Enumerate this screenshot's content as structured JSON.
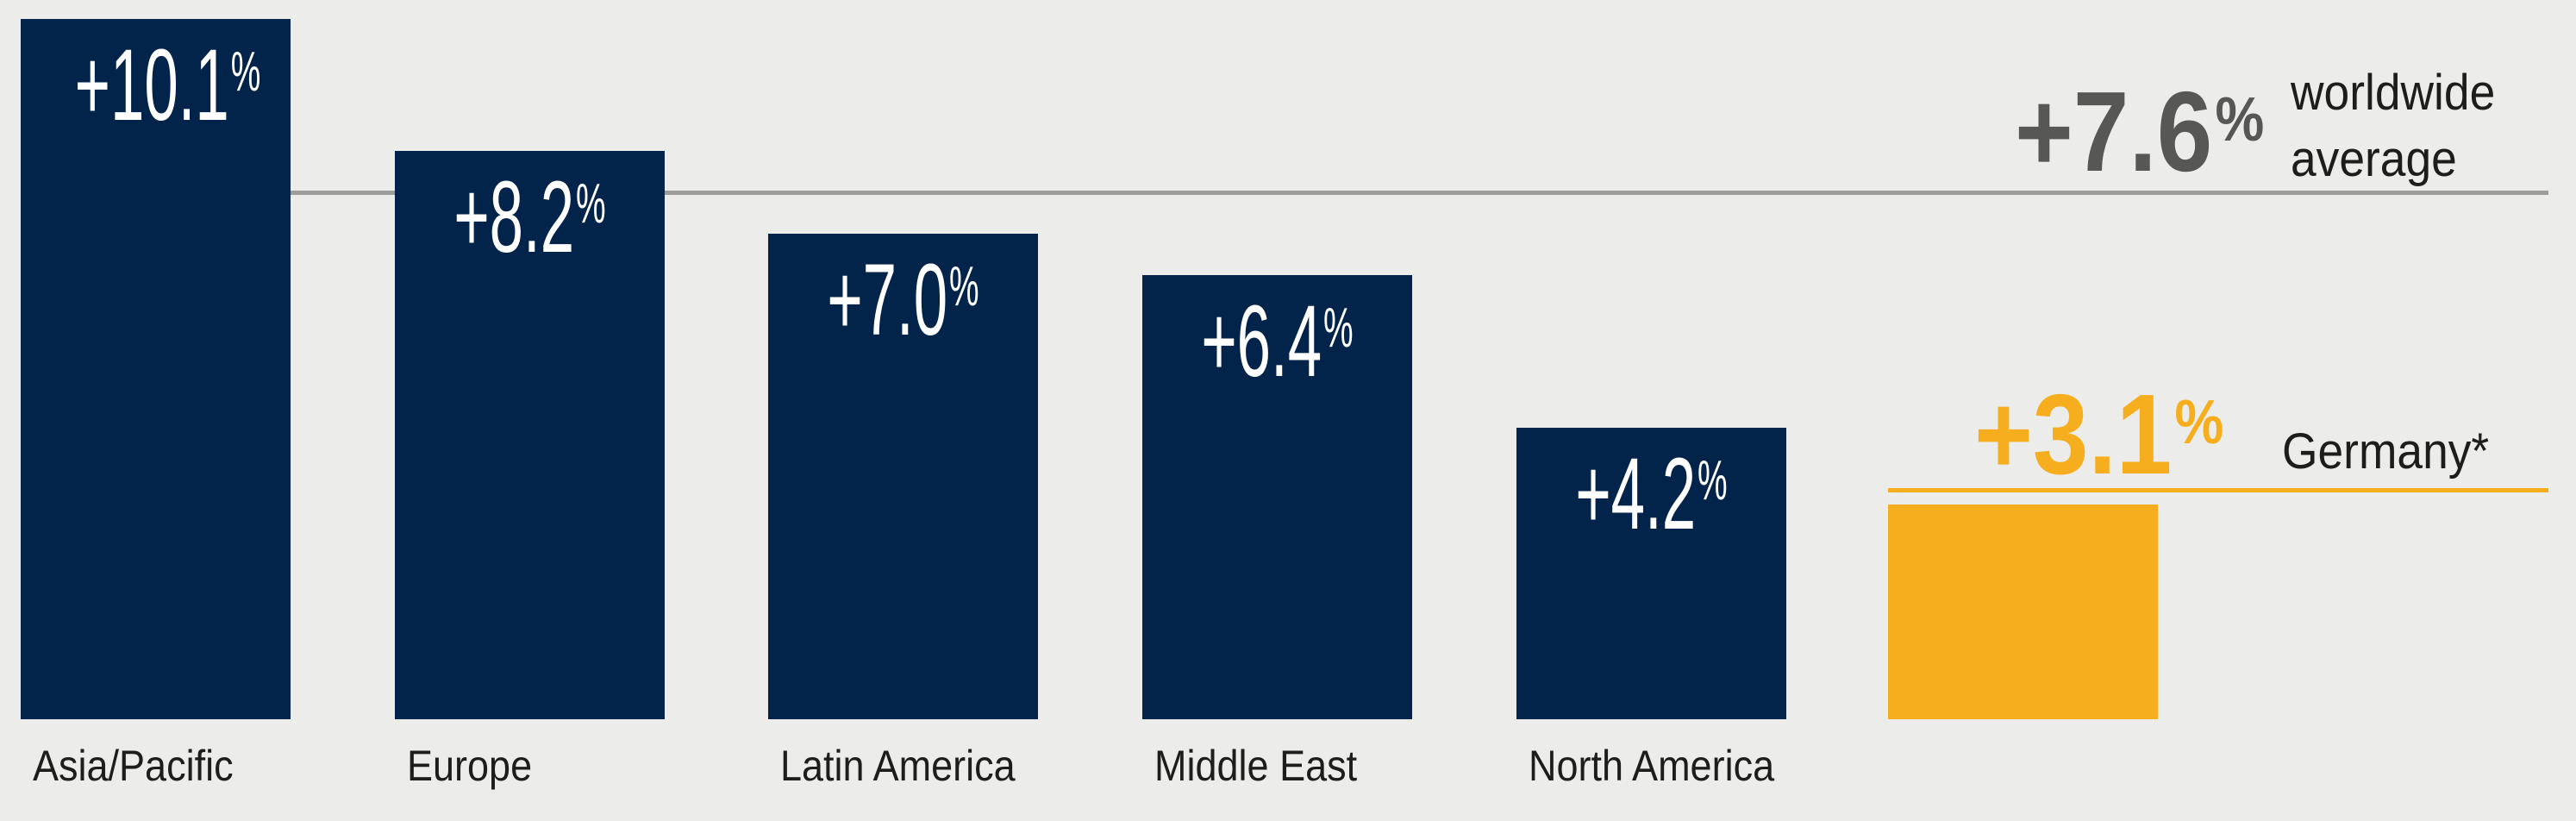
{
  "chart_data": {
    "type": "bar",
    "title": "",
    "categories": [
      "Asia/Pacific",
      "Europe",
      "Latin America",
      "Middle East",
      "North America",
      "Germany*"
    ],
    "values": [
      10.1,
      8.2,
      7.0,
      6.4,
      4.2,
      3.1
    ],
    "value_labels": [
      "+10.1",
      "+8.2",
      "+7.0",
      "+6.4",
      "+4.2",
      "+3.1"
    ],
    "unit": "%",
    "worldwide_average": 7.6,
    "ylim": [
      0,
      10.5
    ],
    "grid": false,
    "legend": false,
    "notes": "Germany value shown as separate yellow annotation with asterisk; worldwide average drawn as horizontal reference line"
  },
  "colors": {
    "background": "#ececea",
    "bar": "#02234a",
    "highlight": "#f6ae1e",
    "bar_value_text": "#ffffff",
    "category_text": "#1d1d1b",
    "average_number": "#575756",
    "average_line": "#9c9c9b",
    "annotation_text": "#1d1d1b"
  },
  "bars": [
    {
      "value_label": "+10.1",
      "pct": "%",
      "category": "Asia/Pacific",
      "color": "#02234a"
    },
    {
      "value_label": "+8.2",
      "pct": "%",
      "category": "Europe",
      "color": "#02234a"
    },
    {
      "value_label": "+7.0",
      "pct": "%",
      "category": "Latin America",
      "color": "#02234a"
    },
    {
      "value_label": "+6.4",
      "pct": "%",
      "category": "Middle East",
      "color": "#02234a"
    },
    {
      "value_label": "+4.2",
      "pct": "%",
      "category": "North America",
      "color": "#02234a"
    },
    {
      "value_label": "",
      "pct": "",
      "category": "",
      "color": "#f6ae1e"
    }
  ],
  "worldwide": {
    "number": "+7.6",
    "pct": "%",
    "label_line1": "worldwide",
    "label_line2": "average"
  },
  "germany": {
    "number": "+3.1",
    "pct": "%",
    "label": "Germany*"
  }
}
